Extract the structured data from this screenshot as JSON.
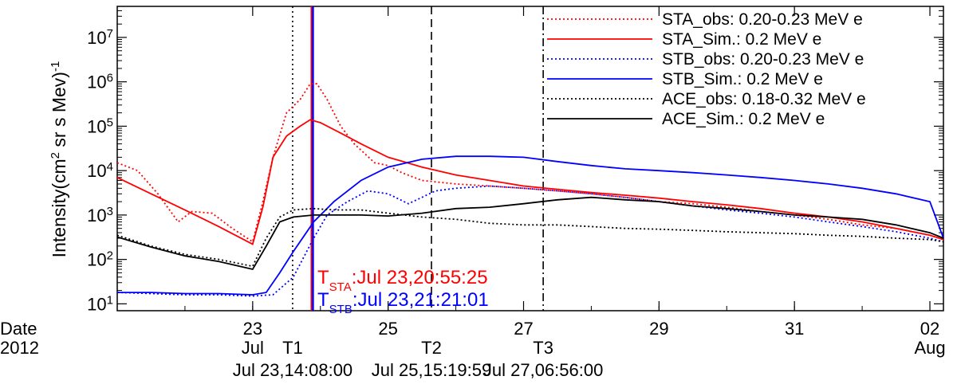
{
  "chart_data": {
    "type": "line",
    "ylabel_main": "Intensity(cm",
    "ylabel_sup1": "2",
    "ylabel_mid": " sr s Mev)",
    "ylabel_sup2": "-1",
    "y_scale": "log",
    "ylim": [
      7,
      50000000
    ],
    "xlim": [
      21.0,
      33.2
    ],
    "x_date_label": "Date",
    "x_year_label": "2012",
    "x_ticks": [
      {
        "x": 23,
        "label": "23",
        "sub": "Jul"
      },
      {
        "x": 25,
        "label": "25",
        "sub": ""
      },
      {
        "x": 27,
        "label": "27",
        "sub": ""
      },
      {
        "x": 29,
        "label": "29",
        "sub": ""
      },
      {
        "x": 31,
        "label": "31",
        "sub": ""
      },
      {
        "x": 33,
        "label": "02",
        "sub": "Aug"
      }
    ],
    "y_ticks": [
      {
        "value": 10,
        "base": "10",
        "exp": "1"
      },
      {
        "value": 100,
        "base": "10",
        "exp": "2"
      },
      {
        "value": 1000,
        "base": "10",
        "exp": "3"
      },
      {
        "value": 10000,
        "base": "10",
        "exp": "4"
      },
      {
        "value": 100000,
        "base": "10",
        "exp": "5"
      },
      {
        "value": 1000000,
        "base": "10",
        "exp": "6"
      },
      {
        "value": 10000000,
        "base": "10",
        "exp": "7"
      }
    ],
    "legend_position": "top-right",
    "series": [
      {
        "name": "STA_obs: 0.20-0.23 MeV e",
        "color": "#ff0000",
        "dash": "dotted",
        "x": [
          21.0,
          21.3,
          21.6,
          21.9,
          22.1,
          22.4,
          22.7,
          23.0,
          23.15,
          23.3,
          23.5,
          23.7,
          23.85,
          23.95,
          24.1,
          24.3,
          24.5,
          24.8,
          25.0,
          25.2,
          25.5,
          26.0,
          26.5,
          27.0,
          27.5,
          28.0,
          28.5,
          29.0,
          29.5,
          30.0,
          30.5,
          31.0,
          31.5,
          32.0,
          32.5,
          33.0,
          33.2
        ],
        "y": [
          15000,
          10000,
          3000,
          700,
          1200,
          1100,
          500,
          250,
          2000,
          20000,
          200000,
          400000,
          900000,
          900000,
          400000,
          100000,
          40000,
          15000,
          13000,
          9000,
          6000,
          5000,
          4500,
          4000,
          3500,
          3000,
          2500,
          2000,
          1800,
          1500,
          1200,
          1000,
          800,
          600,
          500,
          350,
          280
        ]
      },
      {
        "name": "STA_Sim.: 0.2 MeV e",
        "color": "#ff0000",
        "dash": "solid",
        "x": [
          21.0,
          21.5,
          22.0,
          22.5,
          23.0,
          23.15,
          23.3,
          23.5,
          23.7,
          23.85,
          24.0,
          24.3,
          24.6,
          25.0,
          25.5,
          26.0,
          26.5,
          27.0,
          27.5,
          28.0,
          28.5,
          29.0,
          29.5,
          30.0,
          30.5,
          31.0,
          31.5,
          32.0,
          32.5,
          33.0,
          33.2
        ],
        "y": [
          7000,
          3000,
          1300,
          550,
          220,
          1500,
          20000,
          60000,
          100000,
          140000,
          120000,
          70000,
          40000,
          20000,
          12000,
          8000,
          6000,
          4500,
          3800,
          3200,
          2800,
          2400,
          2000,
          1700,
          1400,
          1100,
          900,
          700,
          500,
          350,
          280
        ]
      },
      {
        "name": "STB_obs: 0.20-0.23 MeV e",
        "color": "#0000ff",
        "dash": "dotted",
        "x": [
          21.0,
          21.5,
          22.0,
          22.5,
          23.0,
          23.3,
          23.6,
          23.9,
          24.1,
          24.4,
          24.7,
          25.0,
          25.3,
          25.5,
          25.7,
          26.0,
          26.5,
          27.0,
          27.5,
          28.0,
          28.5,
          29.0,
          29.5,
          30.0,
          30.5,
          31.0,
          31.5,
          32.0,
          32.5,
          33.0,
          33.2
        ],
        "y": [
          18,
          17,
          16,
          16,
          15,
          16,
          40,
          300,
          1000,
          2000,
          3500,
          3000,
          1800,
          2500,
          3500,
          4000,
          4500,
          4000,
          3500,
          3000,
          2500,
          2000,
          1600,
          1300,
          1100,
          900,
          700,
          550,
          420,
          300,
          250
        ]
      },
      {
        "name": "STB_Sim.: 0.2 MeV e",
        "color": "#0000ff",
        "dash": "solid",
        "x": [
          21.0,
          21.5,
          22.0,
          22.5,
          23.0,
          23.2,
          23.4,
          23.6,
          23.9,
          24.2,
          24.6,
          25.0,
          25.5,
          26.0,
          26.5,
          27.0,
          27.5,
          28.0,
          28.5,
          29.0,
          29.5,
          30.0,
          30.5,
          31.0,
          31.5,
          32.0,
          32.5,
          33.0,
          33.2
        ],
        "y": [
          18,
          18,
          17,
          17,
          16,
          18,
          50,
          150,
          700,
          2000,
          6000,
          12000,
          18000,
          21000,
          21000,
          20000,
          16000,
          13000,
          11000,
          10000,
          9000,
          8000,
          7000,
          6000,
          5000,
          4000,
          3000,
          2000,
          300
        ]
      },
      {
        "name": "ACE_obs: 0.18-0.32 MeV e",
        "color": "#000000",
        "dash": "dotted",
        "x": [
          21.0,
          21.5,
          22.0,
          22.5,
          23.0,
          23.2,
          23.4,
          23.6,
          23.9,
          24.2,
          24.6,
          25.0,
          25.5,
          26.0,
          26.5,
          27.0,
          27.5,
          28.0,
          28.5,
          29.0,
          29.5,
          30.0,
          30.5,
          31.0,
          31.5,
          32.0,
          32.5,
          33.0,
          33.2
        ],
        "y": [
          350,
          200,
          130,
          100,
          70,
          300,
          900,
          1300,
          1400,
          1300,
          1300,
          1100,
          900,
          800,
          650,
          600,
          600,
          550,
          500,
          480,
          450,
          420,
          400,
          380,
          350,
          330,
          300,
          280,
          250
        ]
      },
      {
        "name": "ACE_Sim.: 0.2 MeV e",
        "color": "#000000",
        "dash": "solid",
        "x": [
          21.0,
          21.5,
          22.0,
          22.5,
          23.0,
          23.2,
          23.4,
          23.6,
          23.9,
          24.2,
          24.6,
          25.0,
          25.5,
          26.0,
          26.5,
          27.0,
          27.5,
          28.0,
          28.5,
          29.0,
          29.5,
          30.0,
          30.5,
          31.0,
          31.5,
          32.0,
          32.5,
          33.0,
          33.2
        ],
        "y": [
          320,
          190,
          120,
          90,
          60,
          200,
          700,
          900,
          1000,
          1000,
          1000,
          950,
          1100,
          1400,
          1500,
          1800,
          2200,
          2500,
          2200,
          2000,
          1600,
          1400,
          1200,
          1000,
          900,
          800,
          600,
          400,
          300
        ]
      }
    ],
    "vertical_lines": [
      {
        "x": 23.59,
        "style": "dotted",
        "color": "#000000",
        "label": "T1",
        "time": "Jul 23,14:08:00"
      },
      {
        "x": 25.64,
        "style": "dashed",
        "color": "#000000",
        "label": "T2",
        "time": "Jul 25,15:19:59"
      },
      {
        "x": 27.29,
        "style": "dashdot",
        "color": "#000000",
        "label": "T3",
        "time": "Jul 27,06:56:00"
      }
    ],
    "event_lines": [
      {
        "x": 23.87,
        "color": "#ff0000"
      },
      {
        "x": 23.89,
        "color": "#0000ff"
      }
    ],
    "annotations": [
      {
        "T": "T",
        "sub": "STA",
        "text": ":Jul 23,20:55:25",
        "color": "#ff0000"
      },
      {
        "T": "T",
        "sub": "STB",
        "text": ":Jul 23,21:21:01",
        "color": "#0000ff"
      }
    ]
  }
}
